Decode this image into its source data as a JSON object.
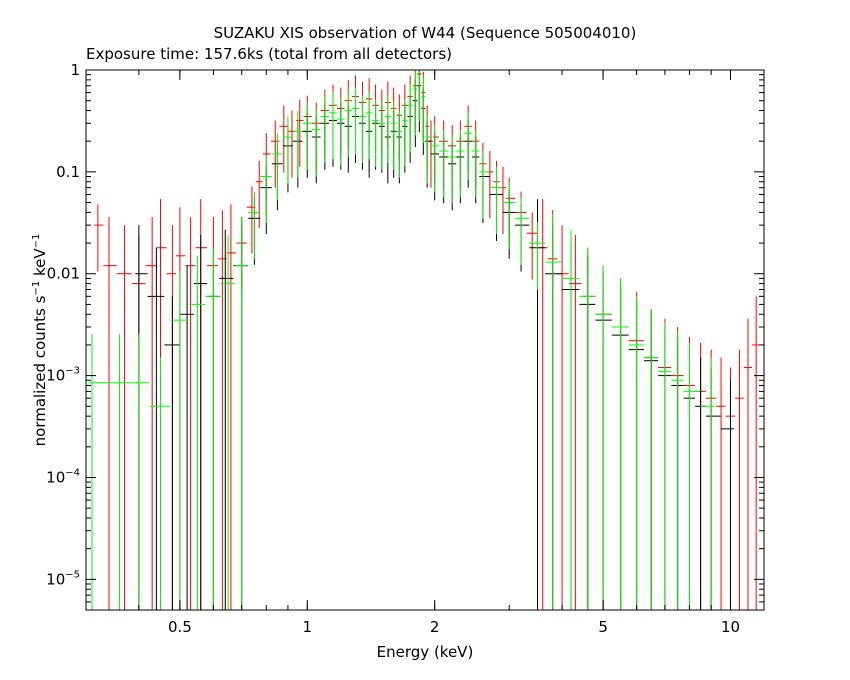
{
  "chart_data": {
    "type": "scatter",
    "title": "SUZAKU XIS observation of W44 (Sequence 505004010)",
    "subtitle": "Exposure time: 157.6ks (total from all detectors)",
    "xlabel": "Energy (keV)",
    "ylabel_main": "normalized counts s",
    "ylabel_mid": " keV",
    "ylabel_sup": "−1",
    "x_scale": "log",
    "y_scale": "log",
    "xlim": [
      0.3,
      12
    ],
    "ylim": [
      5e-06,
      1
    ],
    "x_ticks": [
      {
        "value": 0.5,
        "label": "0.5"
      },
      {
        "value": 1,
        "label": "1"
      },
      {
        "value": 2,
        "label": "2"
      },
      {
        "value": 5,
        "label": "5"
      },
      {
        "value": 10,
        "label": "10"
      }
    ],
    "y_ticks": [
      {
        "value": 1,
        "base": "1",
        "exp": ""
      },
      {
        "value": 0.1,
        "base": "0.1",
        "exp": ""
      },
      {
        "value": 0.01,
        "base": "0.01",
        "exp": ""
      },
      {
        "value": 0.001,
        "base": "10",
        "exp": "−3"
      },
      {
        "value": 0.0001,
        "base": "10",
        "exp": "−4"
      },
      {
        "value": 1e-05,
        "base": "10",
        "exp": "−5"
      }
    ],
    "grid": false,
    "legend": "none",
    "series": [
      {
        "color": "#ff0000",
        "points": [
          [
            0.32,
            0.03
          ],
          [
            0.34,
            0.012
          ],
          [
            0.37,
            0.01
          ],
          [
            0.4,
            0.008
          ],
          [
            0.43,
            0.012
          ],
          [
            0.45,
            0.018
          ],
          [
            0.48,
            0.01
          ],
          [
            0.5,
            0.015
          ],
          [
            0.53,
            0.012
          ],
          [
            0.56,
            0.018
          ],
          [
            0.6,
            0.012
          ],
          [
            0.63,
            0.014
          ],
          [
            0.66,
            0.016
          ],
          [
            0.7,
            0.02
          ],
          [
            0.74,
            0.045
          ],
          [
            0.77,
            0.08
          ],
          [
            0.8,
            0.15
          ],
          [
            0.84,
            0.2
          ],
          [
            0.88,
            0.28
          ],
          [
            0.92,
            0.25
          ],
          [
            0.96,
            0.32
          ],
          [
            1.0,
            0.35
          ],
          [
            1.05,
            0.3
          ],
          [
            1.1,
            0.4
          ],
          [
            1.15,
            0.45
          ],
          [
            1.2,
            0.42
          ],
          [
            1.25,
            0.5
          ],
          [
            1.3,
            0.55
          ],
          [
            1.35,
            0.48
          ],
          [
            1.4,
            0.52
          ],
          [
            1.45,
            0.45
          ],
          [
            1.5,
            0.4
          ],
          [
            1.55,
            0.48
          ],
          [
            1.6,
            0.42
          ],
          [
            1.65,
            0.36
          ],
          [
            1.7,
            0.45
          ],
          [
            1.75,
            0.55
          ],
          [
            1.8,
            0.7
          ],
          [
            1.84,
            0.92
          ],
          [
            1.88,
            0.6
          ],
          [
            1.92,
            0.28
          ],
          [
            1.96,
            0.2
          ],
          [
            2.0,
            0.22
          ],
          [
            2.1,
            0.2
          ],
          [
            2.2,
            0.18
          ],
          [
            2.3,
            0.2
          ],
          [
            2.4,
            0.28
          ],
          [
            2.5,
            0.2
          ],
          [
            2.6,
            0.12
          ],
          [
            2.7,
            0.1
          ],
          [
            2.8,
            0.08
          ],
          [
            2.9,
            0.07
          ],
          [
            3.0,
            0.055
          ],
          [
            3.2,
            0.04
          ],
          [
            3.4,
            0.025
          ],
          [
            3.6,
            0.018
          ],
          [
            3.8,
            0.014
          ],
          [
            4.0,
            0.01
          ],
          [
            4.3,
            0.008
          ],
          [
            4.6,
            0.006
          ],
          [
            5.0,
            0.004
          ],
          [
            5.5,
            0.003
          ],
          [
            6.0,
            0.0022
          ],
          [
            6.5,
            0.0015
          ],
          [
            7.0,
            0.0012
          ],
          [
            7.5,
            0.001
          ],
          [
            8.0,
            0.0008
          ],
          [
            8.5,
            0.0007
          ],
          [
            9.0,
            0.0006
          ],
          [
            9.5,
            0.0005
          ],
          [
            10.0,
            0.0004
          ],
          [
            10.5,
            0.0006
          ],
          [
            11.0,
            0.0012
          ],
          [
            11.5,
            0.002
          ]
        ]
      },
      {
        "color": "#000000",
        "points": [
          [
            0.4,
            0.01
          ],
          [
            0.44,
            0.006
          ],
          [
            0.48,
            0.002
          ],
          [
            0.52,
            0.004
          ],
          [
            0.56,
            0.008
          ],
          [
            0.6,
            0.006
          ],
          [
            0.64,
            0.009
          ],
          [
            0.7,
            0.012
          ],
          [
            0.75,
            0.035
          ],
          [
            0.8,
            0.07
          ],
          [
            0.85,
            0.12
          ],
          [
            0.9,
            0.18
          ],
          [
            0.95,
            0.2
          ],
          [
            1.0,
            0.25
          ],
          [
            1.05,
            0.22
          ],
          [
            1.1,
            0.3
          ],
          [
            1.15,
            0.32
          ],
          [
            1.2,
            0.3
          ],
          [
            1.25,
            0.28
          ],
          [
            1.3,
            0.35
          ],
          [
            1.35,
            0.3
          ],
          [
            1.4,
            0.25
          ],
          [
            1.45,
            0.3
          ],
          [
            1.5,
            0.28
          ],
          [
            1.55,
            0.22
          ],
          [
            1.6,
            0.25
          ],
          [
            1.65,
            0.22
          ],
          [
            1.7,
            0.28
          ],
          [
            1.75,
            0.35
          ],
          [
            1.8,
            0.5
          ],
          [
            1.84,
            0.7
          ],
          [
            1.88,
            0.42
          ],
          [
            1.92,
            0.2
          ],
          [
            2.0,
            0.15
          ],
          [
            2.1,
            0.14
          ],
          [
            2.2,
            0.12
          ],
          [
            2.3,
            0.14
          ],
          [
            2.4,
            0.2
          ],
          [
            2.5,
            0.14
          ],
          [
            2.6,
            0.09
          ],
          [
            2.8,
            0.06
          ],
          [
            3.0,
            0.04
          ],
          [
            3.2,
            0.03
          ],
          [
            3.5,
            0.018
          ],
          [
            3.8,
            0.01
          ],
          [
            4.2,
            0.007
          ],
          [
            4.6,
            0.005
          ],
          [
            5.0,
            0.0035
          ],
          [
            5.5,
            0.0025
          ],
          [
            6.0,
            0.0018
          ],
          [
            6.5,
            0.0014
          ],
          [
            7.0,
            0.001
          ],
          [
            7.5,
            0.0008
          ],
          [
            8.0,
            0.0006
          ],
          [
            8.5,
            0.0005
          ],
          [
            9.0,
            0.0004
          ],
          [
            10.0,
            0.0003
          ]
        ]
      },
      {
        "color": "#00ff00",
        "points": [
          [
            0.31,
            0.00085
          ],
          [
            0.36,
            0.00085
          ],
          [
            0.4,
            0.00085
          ],
          [
            0.45,
            0.0005
          ],
          [
            0.5,
            0.0035
          ],
          [
            0.55,
            0.005
          ],
          [
            0.6,
            0.006
          ],
          [
            0.65,
            0.008
          ],
          [
            0.7,
            0.012
          ],
          [
            0.75,
            0.04
          ],
          [
            0.8,
            0.09
          ],
          [
            0.85,
            0.15
          ],
          [
            0.9,
            0.22
          ],
          [
            0.95,
            0.25
          ],
          [
            1.0,
            0.3
          ],
          [
            1.05,
            0.26
          ],
          [
            1.1,
            0.35
          ],
          [
            1.15,
            0.38
          ],
          [
            1.2,
            0.33
          ],
          [
            1.25,
            0.4
          ],
          [
            1.3,
            0.42
          ],
          [
            1.35,
            0.35
          ],
          [
            1.4,
            0.38
          ],
          [
            1.45,
            0.32
          ],
          [
            1.5,
            0.3
          ],
          [
            1.55,
            0.35
          ],
          [
            1.6,
            0.3
          ],
          [
            1.65,
            0.25
          ],
          [
            1.7,
            0.32
          ],
          [
            1.75,
            0.45
          ],
          [
            1.8,
            0.65
          ],
          [
            1.84,
            0.9
          ],
          [
            1.88,
            0.55
          ],
          [
            1.92,
            0.22
          ],
          [
            2.0,
            0.18
          ],
          [
            2.1,
            0.16
          ],
          [
            2.2,
            0.14
          ],
          [
            2.3,
            0.16
          ],
          [
            2.4,
            0.24
          ],
          [
            2.5,
            0.16
          ],
          [
            2.6,
            0.1
          ],
          [
            2.8,
            0.07
          ],
          [
            3.0,
            0.05
          ],
          [
            3.2,
            0.035
          ],
          [
            3.5,
            0.02
          ],
          [
            3.8,
            0.013
          ],
          [
            4.2,
            0.009
          ],
          [
            4.6,
            0.006
          ],
          [
            5.0,
            0.004
          ],
          [
            5.5,
            0.003
          ],
          [
            6.0,
            0.002
          ],
          [
            6.5,
            0.0015
          ],
          [
            7.0,
            0.0011
          ],
          [
            7.5,
            0.0009
          ],
          [
            8.0,
            0.0007
          ],
          [
            9.0,
            0.0005
          ]
        ]
      }
    ]
  }
}
